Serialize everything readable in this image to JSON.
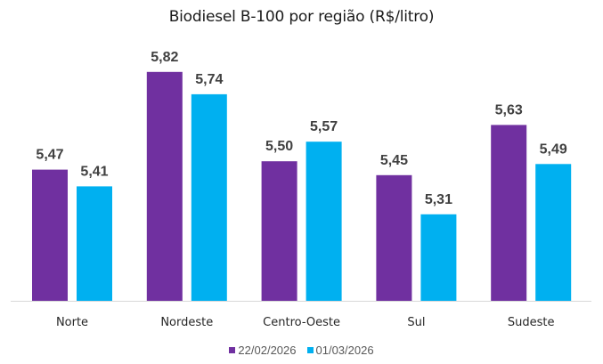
{
  "chart_data": {
    "type": "bar",
    "title": "Biodiesel B-100 por região (R$/litro)",
    "categories": [
      "Norte",
      "Nordeste",
      "Centro-Oeste",
      "Sul",
      "Sudeste"
    ],
    "series": [
      {
        "name": "22/02/2026",
        "color": "#7030A0",
        "values": [
          5.47,
          5.82,
          5.5,
          5.45,
          5.63
        ],
        "labels": [
          "5,47",
          "5,82",
          "5,50",
          "5,45",
          "5,63"
        ]
      },
      {
        "name": "01/03/2026",
        "color": "#00B0F0",
        "values": [
          5.41,
          5.74,
          5.57,
          5.31,
          5.49
        ],
        "labels": [
          "5,41",
          "5,74",
          "5,57",
          "5,31",
          "5,49"
        ]
      }
    ],
    "xlabel": "",
    "ylabel": "",
    "ylim": [
      5.0,
      5.95
    ],
    "grid": false,
    "legend": "bottom"
  }
}
